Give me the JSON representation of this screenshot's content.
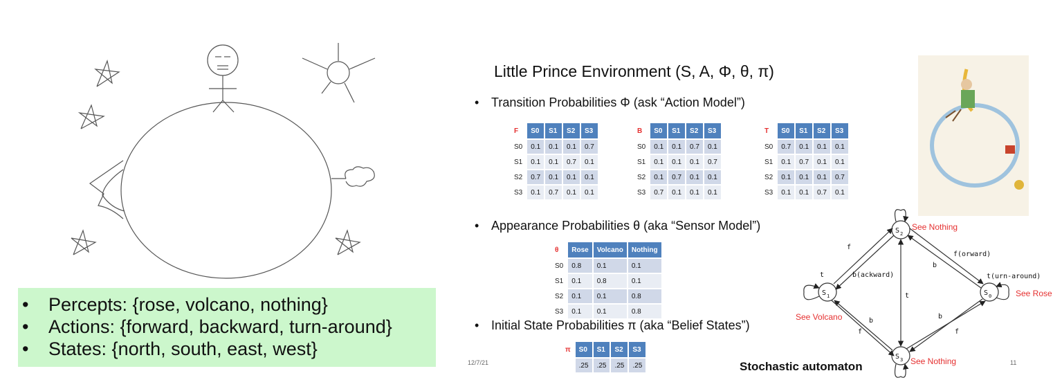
{
  "left": {
    "percepts_label": "Percepts: {rose, volcano, nothing}",
    "actions_label": "Actions: {forward, backward, turn-around}",
    "states_label": "States: {north, south, east, west}"
  },
  "title": "Little Prince Environment (S, A, Φ, θ, π)",
  "bullets": {
    "transition": "Transition Probabilities Φ (ask “Action Model”)",
    "appearance": "Appearance Probabilities θ (aka “Sensor Model”)",
    "initial": "Initial State Probabilities π (aka “Belief States”)"
  },
  "transition_tables": [
    {
      "name": "F",
      "cols": [
        "S0",
        "S1",
        "S2",
        "S3"
      ],
      "rows": [
        {
          "label": "S0",
          "cells": [
            "0.1",
            "0.1",
            "0.1",
            "0.7"
          ]
        },
        {
          "label": "S1",
          "cells": [
            "0.1",
            "0.1",
            "0.7",
            "0.1"
          ]
        },
        {
          "label": "S2",
          "cells": [
            "0.7",
            "0.1",
            "0.1",
            "0.1"
          ]
        },
        {
          "label": "S3",
          "cells": [
            "0.1",
            "0.7",
            "0.1",
            "0.1"
          ]
        }
      ]
    },
    {
      "name": "B",
      "cols": [
        "S0",
        "S1",
        "S2",
        "S3"
      ],
      "rows": [
        {
          "label": "S0",
          "cells": [
            "0.1",
            "0.1",
            "0.7",
            "0.1"
          ]
        },
        {
          "label": "S1",
          "cells": [
            "0.1",
            "0.1",
            "0.1",
            "0.7"
          ]
        },
        {
          "label": "S2",
          "cells": [
            "0.1",
            "0.7",
            "0.1",
            "0.1"
          ]
        },
        {
          "label": "S3",
          "cells": [
            "0.7",
            "0.1",
            "0.1",
            "0.1"
          ]
        }
      ]
    },
    {
      "name": "T",
      "cols": [
        "S0",
        "S1",
        "S2",
        "S3"
      ],
      "rows": [
        {
          "label": "S0",
          "cells": [
            "0.7",
            "0.1",
            "0.1",
            "0.1"
          ]
        },
        {
          "label": "S1",
          "cells": [
            "0.1",
            "0.7",
            "0.1",
            "0.1"
          ]
        },
        {
          "label": "S2",
          "cells": [
            "0.1",
            "0.1",
            "0.1",
            "0.7"
          ]
        },
        {
          "label": "S3",
          "cells": [
            "0.1",
            "0.1",
            "0.7",
            "0.1"
          ]
        }
      ]
    }
  ],
  "sensor_table": {
    "name": "θ",
    "cols": [
      "Rose",
      "Volcano",
      "Nothing"
    ],
    "rows": [
      {
        "label": "S0",
        "cells": [
          "0.8",
          "0.1",
          "0.1"
        ]
      },
      {
        "label": "S1",
        "cells": [
          "0.1",
          "0.8",
          "0.1"
        ]
      },
      {
        "label": "S2",
        "cells": [
          "0.1",
          "0.1",
          "0.8"
        ]
      },
      {
        "label": "S3",
        "cells": [
          "0.1",
          "0.1",
          "0.8"
        ]
      }
    ]
  },
  "initial_table": {
    "name": "π",
    "cols": [
      "S0",
      "S1",
      "S2",
      "S3"
    ],
    "rows": [
      {
        "label": "",
        "cells": [
          ".25",
          ".25",
          ".25",
          ".25"
        ]
      }
    ]
  },
  "automaton": {
    "caption": "Stochastic automaton",
    "s2_label": "See Nothing",
    "s0_label": "See Rose",
    "s1_label": "See Volcano",
    "s3_label": "See Nothing",
    "forward_label": "f(orward)",
    "backward_label": "b(ackward)",
    "turn_label": "t(urn-around)",
    "f": "f",
    "b": "b",
    "t": "t",
    "state_letter": "S",
    "s0_sub": "0",
    "s1_sub": "1",
    "s2_sub": "2",
    "s3_sub": "3"
  },
  "footer": {
    "date": "12/7/21",
    "page": "11"
  },
  "colors": {
    "header_blue": "#4f81bd",
    "cell_dark": "#d0d8e8",
    "cell_light": "#e9edf4",
    "red_label": "#e53030",
    "green_box": "#ccf7cc"
  }
}
